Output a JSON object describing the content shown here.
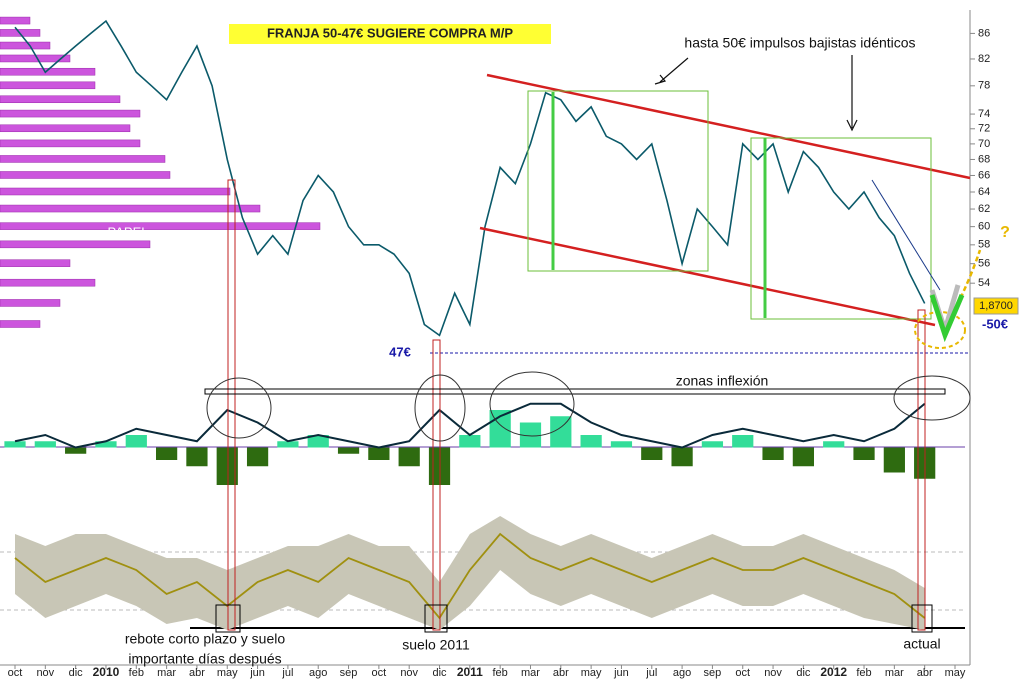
{
  "chart_data": {
    "type": "line",
    "log_scale": true,
    "title": "FRANJA 50-47€ SUGIERE COMPRA M/P",
    "annotations": {
      "impulsos": "hasta 50€ impulsos bajistas idénticos",
      "papel": "PAPEL",
      "soporte": "47€",
      "nivel": "-50€",
      "ultimo": "1,8700",
      "zonas": "zonas inflexión",
      "rebote": [
        "rebote corto plazo y suelo",
        "importante días después"
      ],
      "suelo": "suelo 2011",
      "actual": "actual",
      "pregunta": "?"
    },
    "xlim": [
      -0.5,
      31
    ],
    "xticks": [
      {
        "value": 0,
        "label": "oct"
      },
      {
        "value": 1,
        "label": "nov"
      },
      {
        "value": 2,
        "label": "dic"
      },
      {
        "value": 3,
        "label": "2010"
      },
      {
        "value": 4,
        "label": "feb"
      },
      {
        "value": 5,
        "label": "mar"
      },
      {
        "value": 6,
        "label": "abr"
      },
      {
        "value": 7,
        "label": "may"
      },
      {
        "value": 8,
        "label": "jun"
      },
      {
        "value": 9,
        "label": "jul"
      },
      {
        "value": 10,
        "label": "ago"
      },
      {
        "value": 11,
        "label": "sep"
      },
      {
        "value": 12,
        "label": "oct"
      },
      {
        "value": 13,
        "label": "nov"
      },
      {
        "value": 14,
        "label": "dic"
      },
      {
        "value": 15,
        "label": "2011"
      },
      {
        "value": 16,
        "label": "feb"
      },
      {
        "value": 17,
        "label": "mar"
      },
      {
        "value": 18,
        "label": "abr"
      },
      {
        "value": 19,
        "label": "may"
      },
      {
        "value": 20,
        "label": "jun"
      },
      {
        "value": 21,
        "label": "jul"
      },
      {
        "value": 22,
        "label": "ago"
      },
      {
        "value": 23,
        "label": "sep"
      },
      {
        "value": 24,
        "label": "oct"
      },
      {
        "value": 25,
        "label": "nov"
      },
      {
        "value": 26,
        "label": "dic"
      },
      {
        "value": 27,
        "label": "2012"
      },
      {
        "value": 28,
        "label": "feb"
      },
      {
        "value": 29,
        "label": "mar"
      },
      {
        "value": 30,
        "label": "abr"
      },
      {
        "value": 31,
        "label": "may"
      }
    ],
    "ylim": [
      46.8,
      89
    ],
    "yticks": [
      86,
      82,
      78,
      74,
      72,
      70,
      68,
      66,
      64,
      62,
      60,
      58,
      56,
      54
    ],
    "series": [
      {
        "name": "precio",
        "color": "#0b5a6a",
        "x": [
          0,
          0.5,
          1,
          1.5,
          2,
          2.5,
          3,
          3.5,
          4,
          4.5,
          5,
          5.5,
          6,
          6.5,
          7,
          7.5,
          8,
          8.5,
          9,
          9.5,
          10,
          10.5,
          11,
          11.5,
          12,
          12.5,
          13,
          13.5,
          14,
          14.5,
          15,
          15.5,
          16,
          16.5,
          17,
          17.5,
          18,
          18.5,
          19,
          19.5,
          20,
          20.5,
          21,
          21.5,
          22,
          22.5,
          23,
          23.5,
          24,
          24.5,
          25,
          25.5,
          26,
          26.5,
          27,
          27.5,
          28,
          28.5,
          29,
          29.5,
          30
        ],
        "values": [
          87,
          84,
          80,
          82,
          84,
          86,
          88,
          84,
          80,
          78,
          76,
          80,
          84,
          78,
          68,
          61,
          57,
          59,
          57,
          63,
          66,
          64,
          60,
          58,
          58,
          57,
          55,
          50,
          49,
          53,
          50,
          60,
          67,
          65,
          70,
          77,
          76,
          73,
          75,
          71,
          70,
          68,
          70,
          63,
          56,
          62,
          60,
          58,
          70,
          68,
          70,
          64,
          69,
          67,
          64,
          62,
          64,
          61,
          59,
          55,
          52
        ]
      }
    ],
    "volume_profile": {
      "color": "#cc55dd",
      "xlim": [
        0,
        330
      ],
      "levels": [
        50,
        52,
        54,
        56,
        58,
        60,
        62,
        64,
        66,
        68,
        70,
        72,
        74,
        76,
        78,
        80,
        82,
        84,
        86,
        88
      ],
      "values": [
        40,
        60,
        95,
        70,
        150,
        320,
        260,
        230,
        170,
        165,
        140,
        130,
        140,
        120,
        95,
        95,
        70,
        50,
        40,
        30
      ]
    },
    "oscillator": {
      "ylim": [
        -1,
        1
      ],
      "line_color": "#0a2a3a",
      "hist_up": "#33dd99",
      "hist_down": "#2e6b10",
      "line": [
        0.1,
        0.2,
        0.0,
        0.1,
        0.3,
        0.2,
        0.1,
        0.6,
        0.4,
        0.1,
        0.2,
        0.1,
        0.0,
        0.1,
        0.6,
        0.2,
        0.5,
        0.7,
        0.7,
        0.4,
        0.2,
        0.1,
        0.0,
        0.2,
        0.3,
        0.2,
        0.1,
        0.2,
        0.1,
        0.3,
        0.7
      ],
      "hist": [
        0.1,
        0.1,
        -0.1,
        0.1,
        0.2,
        -0.2,
        -0.3,
        -0.6,
        -0.3,
        0.1,
        0.2,
        -0.1,
        -0.2,
        -0.3,
        -0.6,
        0.2,
        0.6,
        0.4,
        0.5,
        0.2,
        0.1,
        -0.2,
        -0.3,
        0.1,
        0.2,
        -0.2,
        -0.3,
        0.1,
        -0.2,
        -0.4,
        -0.5
      ]
    },
    "ratio": {
      "ylim": [
        0,
        1
      ],
      "color": "#a09010",
      "band_color": "#c8c6b6",
      "line": [
        0.6,
        0.4,
        0.5,
        0.6,
        0.5,
        0.3,
        0.4,
        0.2,
        0.4,
        0.5,
        0.4,
        0.6,
        0.5,
        0.4,
        0.1,
        0.5,
        0.8,
        0.6,
        0.5,
        0.6,
        0.5,
        0.4,
        0.5,
        0.6,
        0.5,
        0.5,
        0.6,
        0.5,
        0.4,
        0.3,
        0.1
      ],
      "upper": [
        0.8,
        0.7,
        0.8,
        0.8,
        0.7,
        0.6,
        0.6,
        0.5,
        0.6,
        0.7,
        0.7,
        0.8,
        0.7,
        0.7,
        0.4,
        0.8,
        0.95,
        0.8,
        0.7,
        0.8,
        0.7,
        0.6,
        0.7,
        0.8,
        0.7,
        0.7,
        0.8,
        0.7,
        0.6,
        0.5,
        0.35
      ],
      "lower": [
        0.3,
        0.1,
        0.2,
        0.3,
        0.2,
        0.05,
        0.1,
        0.0,
        0.1,
        0.2,
        0.1,
        0.3,
        0.2,
        0.1,
        0.0,
        0.2,
        0.5,
        0.3,
        0.2,
        0.3,
        0.2,
        0.1,
        0.2,
        0.3,
        0.2,
        0.2,
        0.3,
        0.2,
        0.1,
        0.05,
        0.0
      ]
    }
  }
}
